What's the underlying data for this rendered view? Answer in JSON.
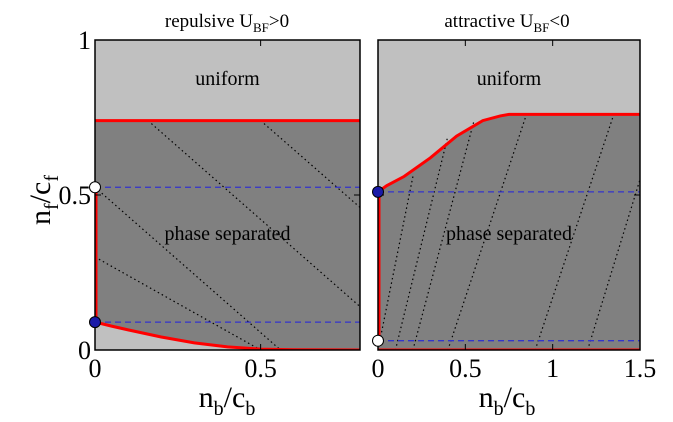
{
  "figure": {
    "ylabel_main": "n",
    "ylabel_sub": "f",
    "ylabel_slash": "/c",
    "ylabel_sub2": "f"
  },
  "colors": {
    "uniform": "#c0c0c0",
    "phase_separated": "#808080",
    "boundary": "#ff0000",
    "dashed": "#3333cc",
    "dotted": "#000000",
    "filled_marker": "#1a1aa8",
    "open_marker": "#ffffff"
  },
  "chart_data": [
    {
      "type": "area",
      "panel": "repulsive",
      "title_prefix": "repulsive U",
      "title_sub": "BF",
      "title_suffix": ">0",
      "xlabel_main": "n",
      "xlabel_sub": "b",
      "xlabel_slash": "/c",
      "xlabel_sub2": "b",
      "xlim": [
        0,
        0.8
      ],
      "ylim": [
        0,
        1
      ],
      "xticks": [
        0,
        0.5
      ],
      "xtick_labels": [
        "0",
        "0.5"
      ],
      "yticks": [
        0,
        0.5,
        1
      ],
      "ytick_labels": [
        "0",
        "0.5",
        "1"
      ],
      "region_labels": {
        "upper": "uniform",
        "middle": "phase separated"
      },
      "upper_boundary": {
        "x": [
          0,
          0.8
        ],
        "y": [
          0.74,
          0.74
        ]
      },
      "lower_boundary": {
        "x": [
          0,
          0.05,
          0.1,
          0.2,
          0.3,
          0.4,
          0.5,
          0.6,
          0.8
        ],
        "y": [
          0.09,
          0.077,
          0.065,
          0.042,
          0.023,
          0.01,
          0.003,
          0.001,
          0.0
        ]
      },
      "dashed_lines": [
        0.525,
        0.09
      ],
      "dotted_lines": [
        {
          "x": [
            0,
            0.56
          ],
          "y": [
            0.525,
            0.0
          ]
        },
        {
          "x": [
            0.16,
            0.8
          ],
          "y": [
            0.74,
            0.14
          ]
        },
        {
          "x": [
            0.5,
            0.8
          ],
          "y": [
            0.74,
            0.46
          ]
        },
        {
          "x": [
            0,
            0.5
          ],
          "y": [
            0.3,
            0.0
          ]
        }
      ],
      "markers": [
        {
          "x": 0,
          "y": 0.525,
          "style": "open"
        },
        {
          "x": 0,
          "y": 0.09,
          "style": "filled"
        }
      ]
    },
    {
      "type": "area",
      "panel": "attractive",
      "title_prefix": "attractive U",
      "title_sub": "BF",
      "title_suffix": "<0",
      "xlabel_main": "n",
      "xlabel_sub": "b",
      "xlabel_slash": "/c",
      "xlabel_sub2": "b",
      "xlim": [
        0,
        1.5
      ],
      "ylim": [
        0,
        1
      ],
      "xticks": [
        0,
        0.5,
        1,
        1.5
      ],
      "xtick_labels": [
        "0",
        "0.5",
        "1",
        "1.5"
      ],
      "yticks": [
        0,
        0.5,
        1
      ],
      "ytick_labels": [],
      "region_labels": {
        "upper": "uniform",
        "middle": "phase separated"
      },
      "upper_boundary": {
        "x": [
          0,
          0.05,
          0.15,
          0.3,
          0.45,
          0.6,
          0.7,
          0.75,
          1.5
        ],
        "y": [
          0.51,
          0.53,
          0.56,
          0.62,
          0.69,
          0.74,
          0.755,
          0.76,
          0.76
        ]
      },
      "lower_boundary": {
        "x": [
          0,
          1.5
        ],
        "y": [
          0.0,
          0.0
        ]
      },
      "dashed_lines": [
        0.51,
        0.03
      ],
      "dotted_lines": [
        {
          "x": [
            0,
            0.2
          ],
          "y": [
            0.0,
            0.56
          ]
        },
        {
          "x": [
            0.1,
            0.4
          ],
          "y": [
            0.0,
            0.69
          ]
        },
        {
          "x": [
            0.2,
            0.55
          ],
          "y": [
            0.0,
            0.74
          ]
        },
        {
          "x": [
            0.4,
            0.85
          ],
          "y": [
            0.0,
            0.76
          ]
        },
        {
          "x": [
            0.9,
            1.35
          ],
          "y": [
            0.0,
            0.76
          ]
        },
        {
          "x": [
            1.2,
            1.5
          ],
          "y": [
            0.0,
            0.55
          ]
        }
      ],
      "markers": [
        {
          "x": 0,
          "y": 0.51,
          "style": "filled"
        },
        {
          "x": 0,
          "y": 0.03,
          "style": "open"
        }
      ]
    }
  ]
}
